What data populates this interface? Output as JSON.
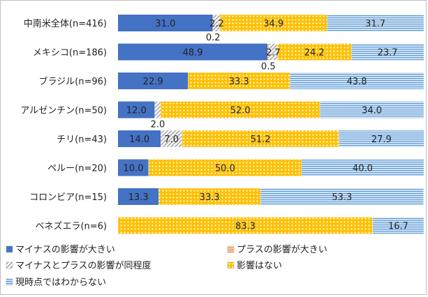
{
  "chart_data": {
    "type": "bar",
    "orientation": "horizontal",
    "stacked": true,
    "percent": true,
    "xlim": [
      0,
      100
    ],
    "grid": false,
    "legend_position": "bottom",
    "categories": [
      "中南米全体(n=416)",
      "メキシコ(n=186)",
      "ブラジル(n=96)",
      "アルゼンチン(n=50)",
      "チリ(n=43)",
      "ペルー(n=20)",
      "コロンビア(n=15)",
      "ベネズエラ(n=6)"
    ],
    "series": [
      {
        "name": "マイナスの影響が大きい",
        "color": "#4472c4",
        "pattern": "solid",
        "values": [
          31.0,
          48.9,
          22.9,
          12.0,
          14.0,
          10.0,
          13.3,
          0
        ]
      },
      {
        "name": "プラスの影響が大きい",
        "color": "#ed7d31",
        "pattern": "hlines",
        "values": [
          0.2,
          0.5,
          0,
          0,
          0,
          0,
          0,
          0
        ]
      },
      {
        "name": "マイナスとプラスの影響が同程度",
        "color": "#a5a5a5",
        "pattern": "diagonal",
        "values": [
          2.2,
          2.7,
          0,
          2.0,
          7.0,
          0,
          0,
          0
        ]
      },
      {
        "name": "影響はない",
        "color": "#ffc000",
        "pattern": "dots",
        "values": [
          34.9,
          24.2,
          33.3,
          52.0,
          51.2,
          50.0,
          33.3,
          83.3
        ]
      },
      {
        "name": "現時点ではわからない",
        "color": "#5b9bd5",
        "pattern": "hlines-light",
        "values": [
          31.7,
          23.7,
          43.8,
          34.0,
          27.9,
          40.0,
          53.3,
          16.7
        ]
      }
    ],
    "value_labels": [
      [
        "31.0",
        "0.2",
        "2.2",
        "34.9",
        "31.7"
      ],
      [
        "48.9",
        "0.5",
        "2.7",
        "24.2",
        "23.7"
      ],
      [
        "22.9",
        "",
        "",
        "33.3",
        "43.8"
      ],
      [
        "12.0",
        "",
        "2.0",
        "52.0",
        "34.0"
      ],
      [
        "14.0",
        "",
        "7.0",
        "51.2",
        "27.9"
      ],
      [
        "10.0",
        "",
        "",
        "50.0",
        "40.0"
      ],
      [
        "13.3",
        "",
        "",
        "33.3",
        "53.3"
      ],
      [
        "",
        "",
        "",
        "83.3",
        "16.7"
      ]
    ]
  }
}
